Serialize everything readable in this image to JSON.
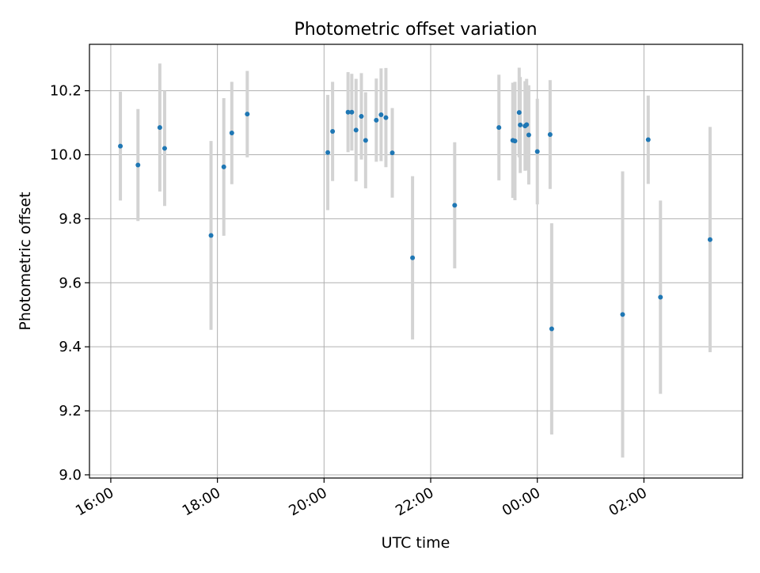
{
  "chart_data": {
    "type": "scatter",
    "title": "Photometric offset variation",
    "xlabel": "UTC time",
    "ylabel": "Photometric offset",
    "x_unit": "hours after 16:00 UTC",
    "xlim": [
      -0.4,
      11.85
    ],
    "ylim": [
      8.99,
      10.345
    ],
    "grid": true,
    "x_ticks": [
      {
        "value": 0,
        "label": "16:00"
      },
      {
        "value": 2,
        "label": "18:00"
      },
      {
        "value": 4,
        "label": "20:00"
      },
      {
        "value": 6,
        "label": "22:00"
      },
      {
        "value": 8,
        "label": "00:00"
      },
      {
        "value": 10,
        "label": "02:00"
      }
    ],
    "y_ticks": [
      {
        "value": 9.0,
        "label": "9.0"
      },
      {
        "value": 9.2,
        "label": "9.2"
      },
      {
        "value": 9.4,
        "label": "9.4"
      },
      {
        "value": 9.6,
        "label": "9.6"
      },
      {
        "value": 9.8,
        "label": "9.8"
      },
      {
        "value": 10.0,
        "label": "10.0"
      },
      {
        "value": 10.2,
        "label": "10.2"
      }
    ],
    "colors": {
      "point": "#1f77b4",
      "errorbar": "#d3d3d3",
      "grid": "#b0b0b0",
      "axes": "#000000"
    },
    "points": [
      {
        "x": 0.18,
        "y": 10.027,
        "err": 0.17
      },
      {
        "x": 0.51,
        "y": 9.968,
        "err": 0.175
      },
      {
        "x": 0.92,
        "y": 10.085,
        "err": 0.2
      },
      {
        "x": 1.01,
        "y": 10.02,
        "err": 0.18
      },
      {
        "x": 1.88,
        "y": 9.748,
        "err": 0.295
      },
      {
        "x": 2.12,
        "y": 9.962,
        "err": 0.215
      },
      {
        "x": 2.27,
        "y": 10.068,
        "err": 0.16
      },
      {
        "x": 2.56,
        "y": 10.127,
        "err": 0.135
      },
      {
        "x": 4.07,
        "y": 10.007,
        "err": 0.18
      },
      {
        "x": 4.16,
        "y": 10.073,
        "err": 0.155
      },
      {
        "x": 4.45,
        "y": 10.133,
        "err": 0.125
      },
      {
        "x": 4.52,
        "y": 10.133,
        "err": 0.12
      },
      {
        "x": 4.6,
        "y": 10.077,
        "err": 0.16
      },
      {
        "x": 4.7,
        "y": 10.12,
        "err": 0.135
      },
      {
        "x": 4.78,
        "y": 10.045,
        "err": 0.15
      },
      {
        "x": 4.98,
        "y": 10.108,
        "err": 0.13
      },
      {
        "x": 5.07,
        "y": 10.125,
        "err": 0.145
      },
      {
        "x": 5.16,
        "y": 10.116,
        "err": 0.155
      },
      {
        "x": 5.28,
        "y": 10.006,
        "err": 0.14
      },
      {
        "x": 5.66,
        "y": 9.678,
        "err": 0.255
      },
      {
        "x": 6.45,
        "y": 9.842,
        "err": 0.197
      },
      {
        "x": 7.28,
        "y": 10.085,
        "err": 0.165
      },
      {
        "x": 7.54,
        "y": 10.045,
        "err": 0.18
      },
      {
        "x": 7.58,
        "y": 10.043,
        "err": 0.185
      },
      {
        "x": 7.66,
        "y": 10.132,
        "err": 0.14
      },
      {
        "x": 7.68,
        "y": 10.093,
        "err": 0.15
      },
      {
        "x": 7.77,
        "y": 10.09,
        "err": 0.14
      },
      {
        "x": 7.8,
        "y": 10.094,
        "err": 0.143
      },
      {
        "x": 7.84,
        "y": 10.062,
        "err": 0.155
      },
      {
        "x": 8.0,
        "y": 10.01,
        "err": 0.165
      },
      {
        "x": 8.24,
        "y": 10.063,
        "err": 0.17
      },
      {
        "x": 8.27,
        "y": 9.456,
        "err": 0.33
      },
      {
        "x": 9.6,
        "y": 9.501,
        "err": 0.447
      },
      {
        "x": 10.08,
        "y": 10.047,
        "err": 0.138
      },
      {
        "x": 10.31,
        "y": 9.555,
        "err": 0.302
      },
      {
        "x": 11.24,
        "y": 9.735,
        "err": 0.352
      }
    ]
  }
}
